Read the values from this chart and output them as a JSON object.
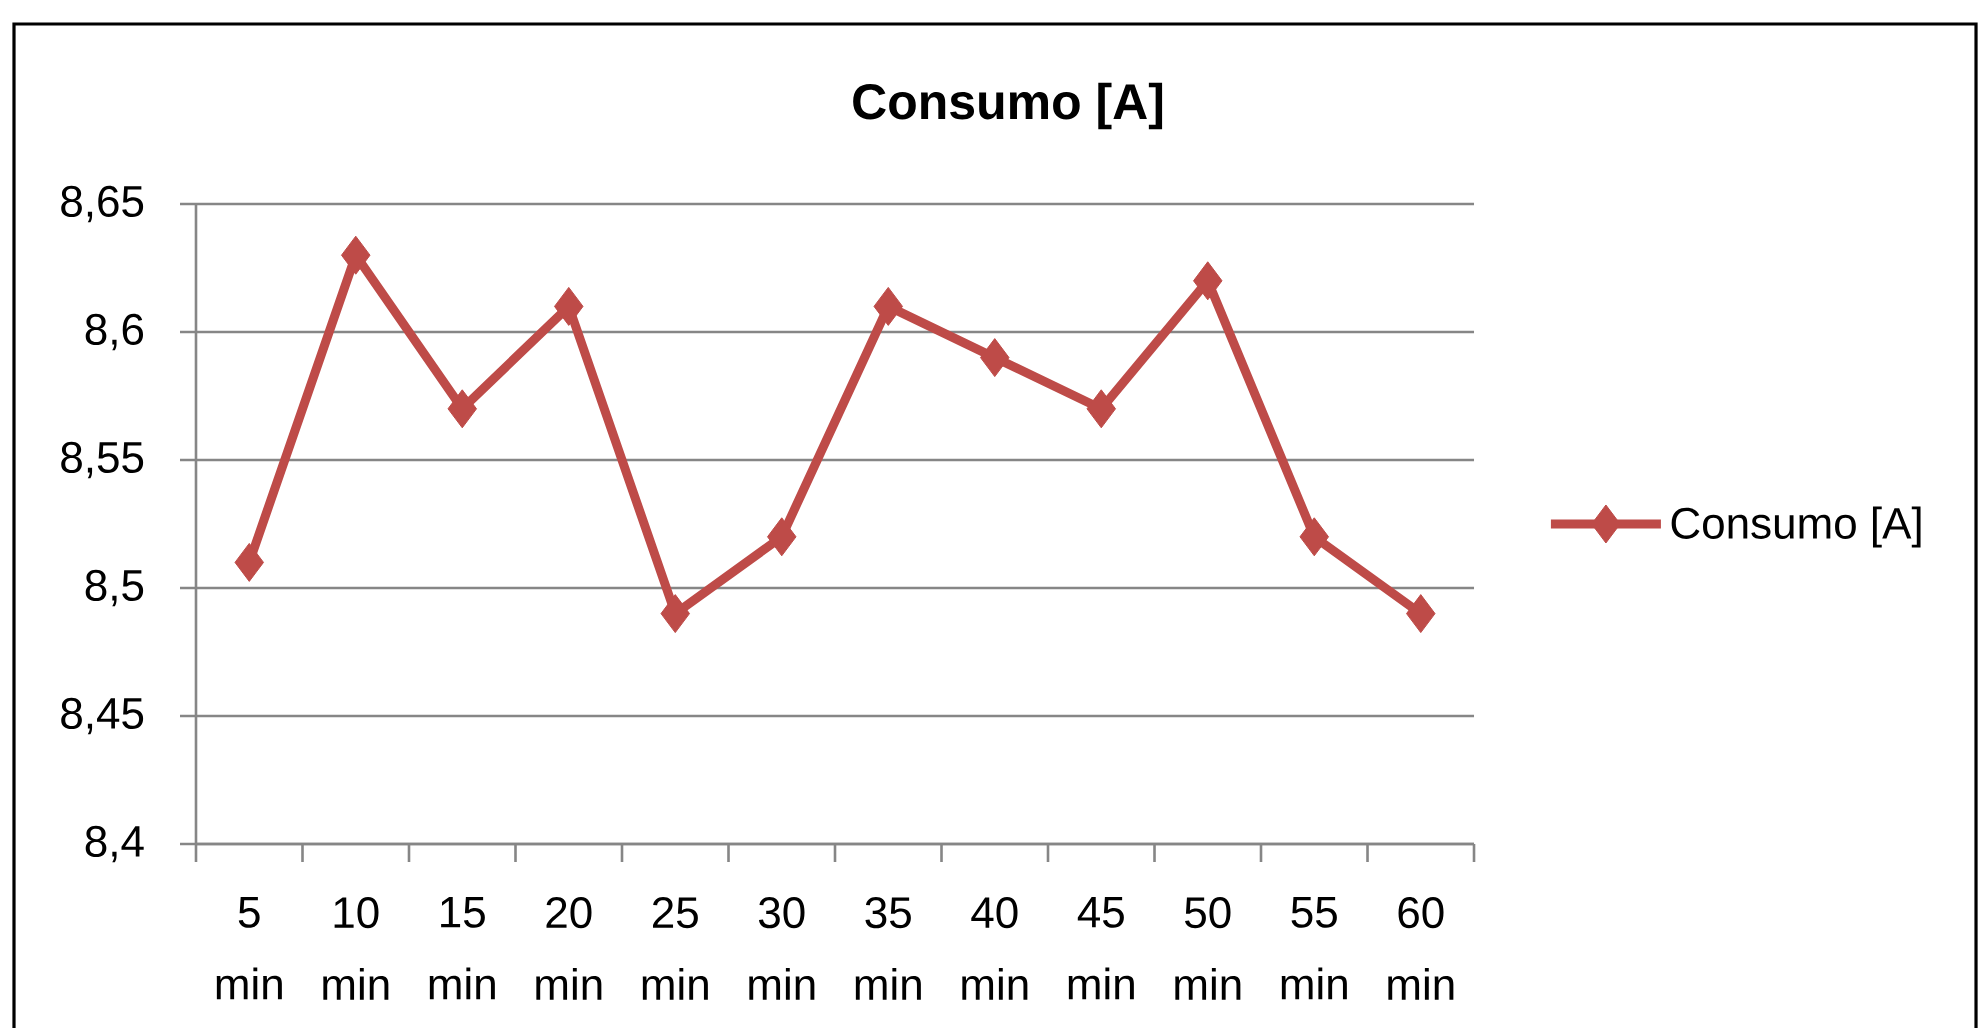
{
  "chart_data": {
    "type": "line",
    "title": "Consumo [A]",
    "categories": [
      "5 min",
      "10 min",
      "15 min",
      "20 min",
      "25 min",
      "30 min",
      "35 min",
      "40 min",
      "45 min",
      "50 min",
      "55 min",
      "60 min"
    ],
    "series": [
      {
        "name": "Consumo [A]",
        "color": "#be4b48",
        "values": [
          8.51,
          8.63,
          8.57,
          8.61,
          8.49,
          8.52,
          8.61,
          8.59,
          8.57,
          8.62,
          8.52,
          8.49
        ]
      }
    ],
    "ylim": [
      8.4,
      8.65
    ],
    "yticks": [
      {
        "value": 8.4,
        "label": "8,4"
      },
      {
        "value": 8.45,
        "label": "8,45"
      },
      {
        "value": 8.5,
        "label": "8,5"
      },
      {
        "value": 8.55,
        "label": "8,55"
      },
      {
        "value": 8.6,
        "label": "8,6"
      },
      {
        "value": 8.65,
        "label": "8,65"
      }
    ],
    "grid": "y",
    "legend": "right",
    "marker": "diamond",
    "line_style": "solid"
  }
}
